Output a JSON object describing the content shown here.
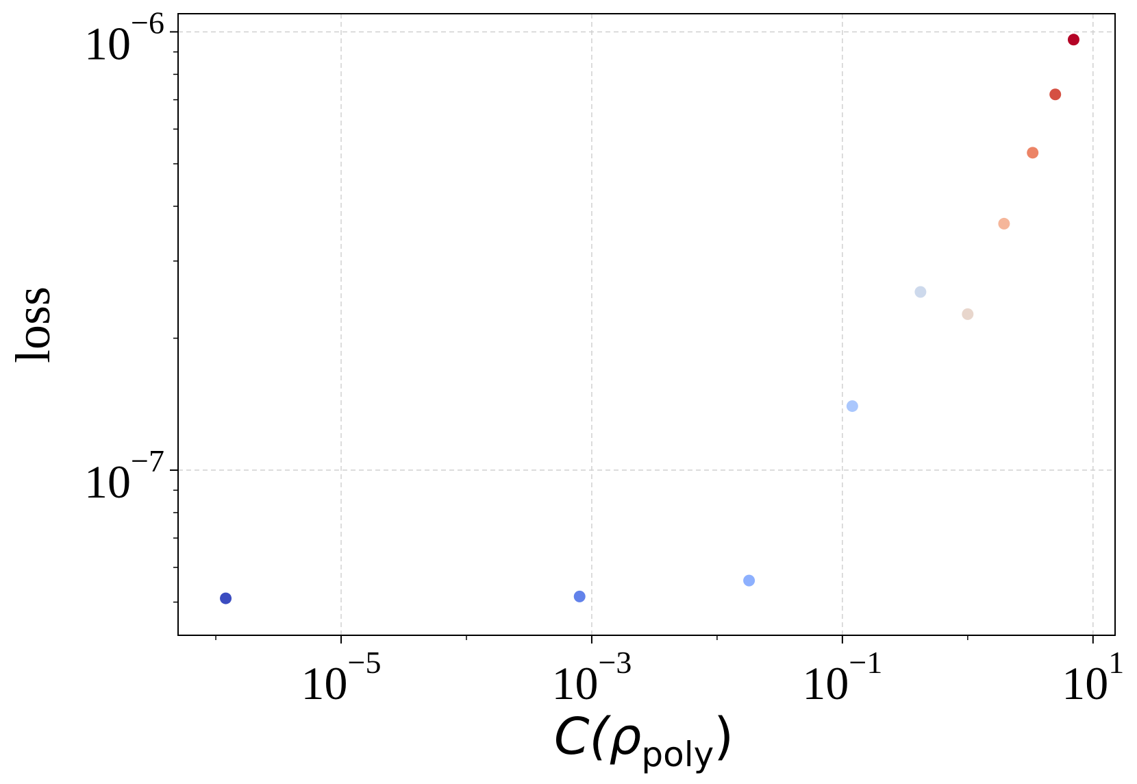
{
  "chart_data": {
    "type": "scatter",
    "title": "",
    "xlabel": {
      "main": "C(ρ",
      "subscript": "poly",
      "close": ")"
    },
    "ylabel": "loss",
    "xscale": "log",
    "yscale": "log",
    "xlim": [
      5e-07,
      15
    ],
    "ylim": [
      4.2e-08,
      1.1e-06
    ],
    "xticks": [
      {
        "value": 1e-05,
        "base": "10",
        "exp": "−5"
      },
      {
        "value": 0.001,
        "base": "10",
        "exp": "−3"
      },
      {
        "value": 0.1,
        "base": "10",
        "exp": "−1"
      },
      {
        "value": 10,
        "base": "10",
        "exp": "1"
      }
    ],
    "yticks": [
      {
        "value": 1e-07,
        "base": "10",
        "exp": "−7"
      },
      {
        "value": 1e-06,
        "base": "10",
        "exp": "−6"
      }
    ],
    "grid": true,
    "legend": "none",
    "colormap": "coolwarm",
    "points": [
      {
        "x": 1.2e-06,
        "y": 5.1e-08,
        "color": "#3b4cc0"
      },
      {
        "x": 0.0008,
        "y": 5.15e-08,
        "color": "#6282ea"
      },
      {
        "x": 0.018,
        "y": 5.6e-08,
        "color": "#8db0fe"
      },
      {
        "x": 0.12,
        "y": 1.4e-07,
        "color": "#aac7fd"
      },
      {
        "x": 0.42,
        "y": 2.55e-07,
        "color": "#cdd9ec"
      },
      {
        "x": 1.0,
        "y": 2.27e-07,
        "color": "#e8d6cc"
      },
      {
        "x": 1.95,
        "y": 3.65e-07,
        "color": "#f5b69a"
      },
      {
        "x": 3.3,
        "y": 5.3e-07,
        "color": "#ec8466"
      },
      {
        "x": 5.0,
        "y": 7.2e-07,
        "color": "#d55042"
      },
      {
        "x": 7.0,
        "y": 9.6e-07,
        "color": "#b40426"
      }
    ]
  }
}
